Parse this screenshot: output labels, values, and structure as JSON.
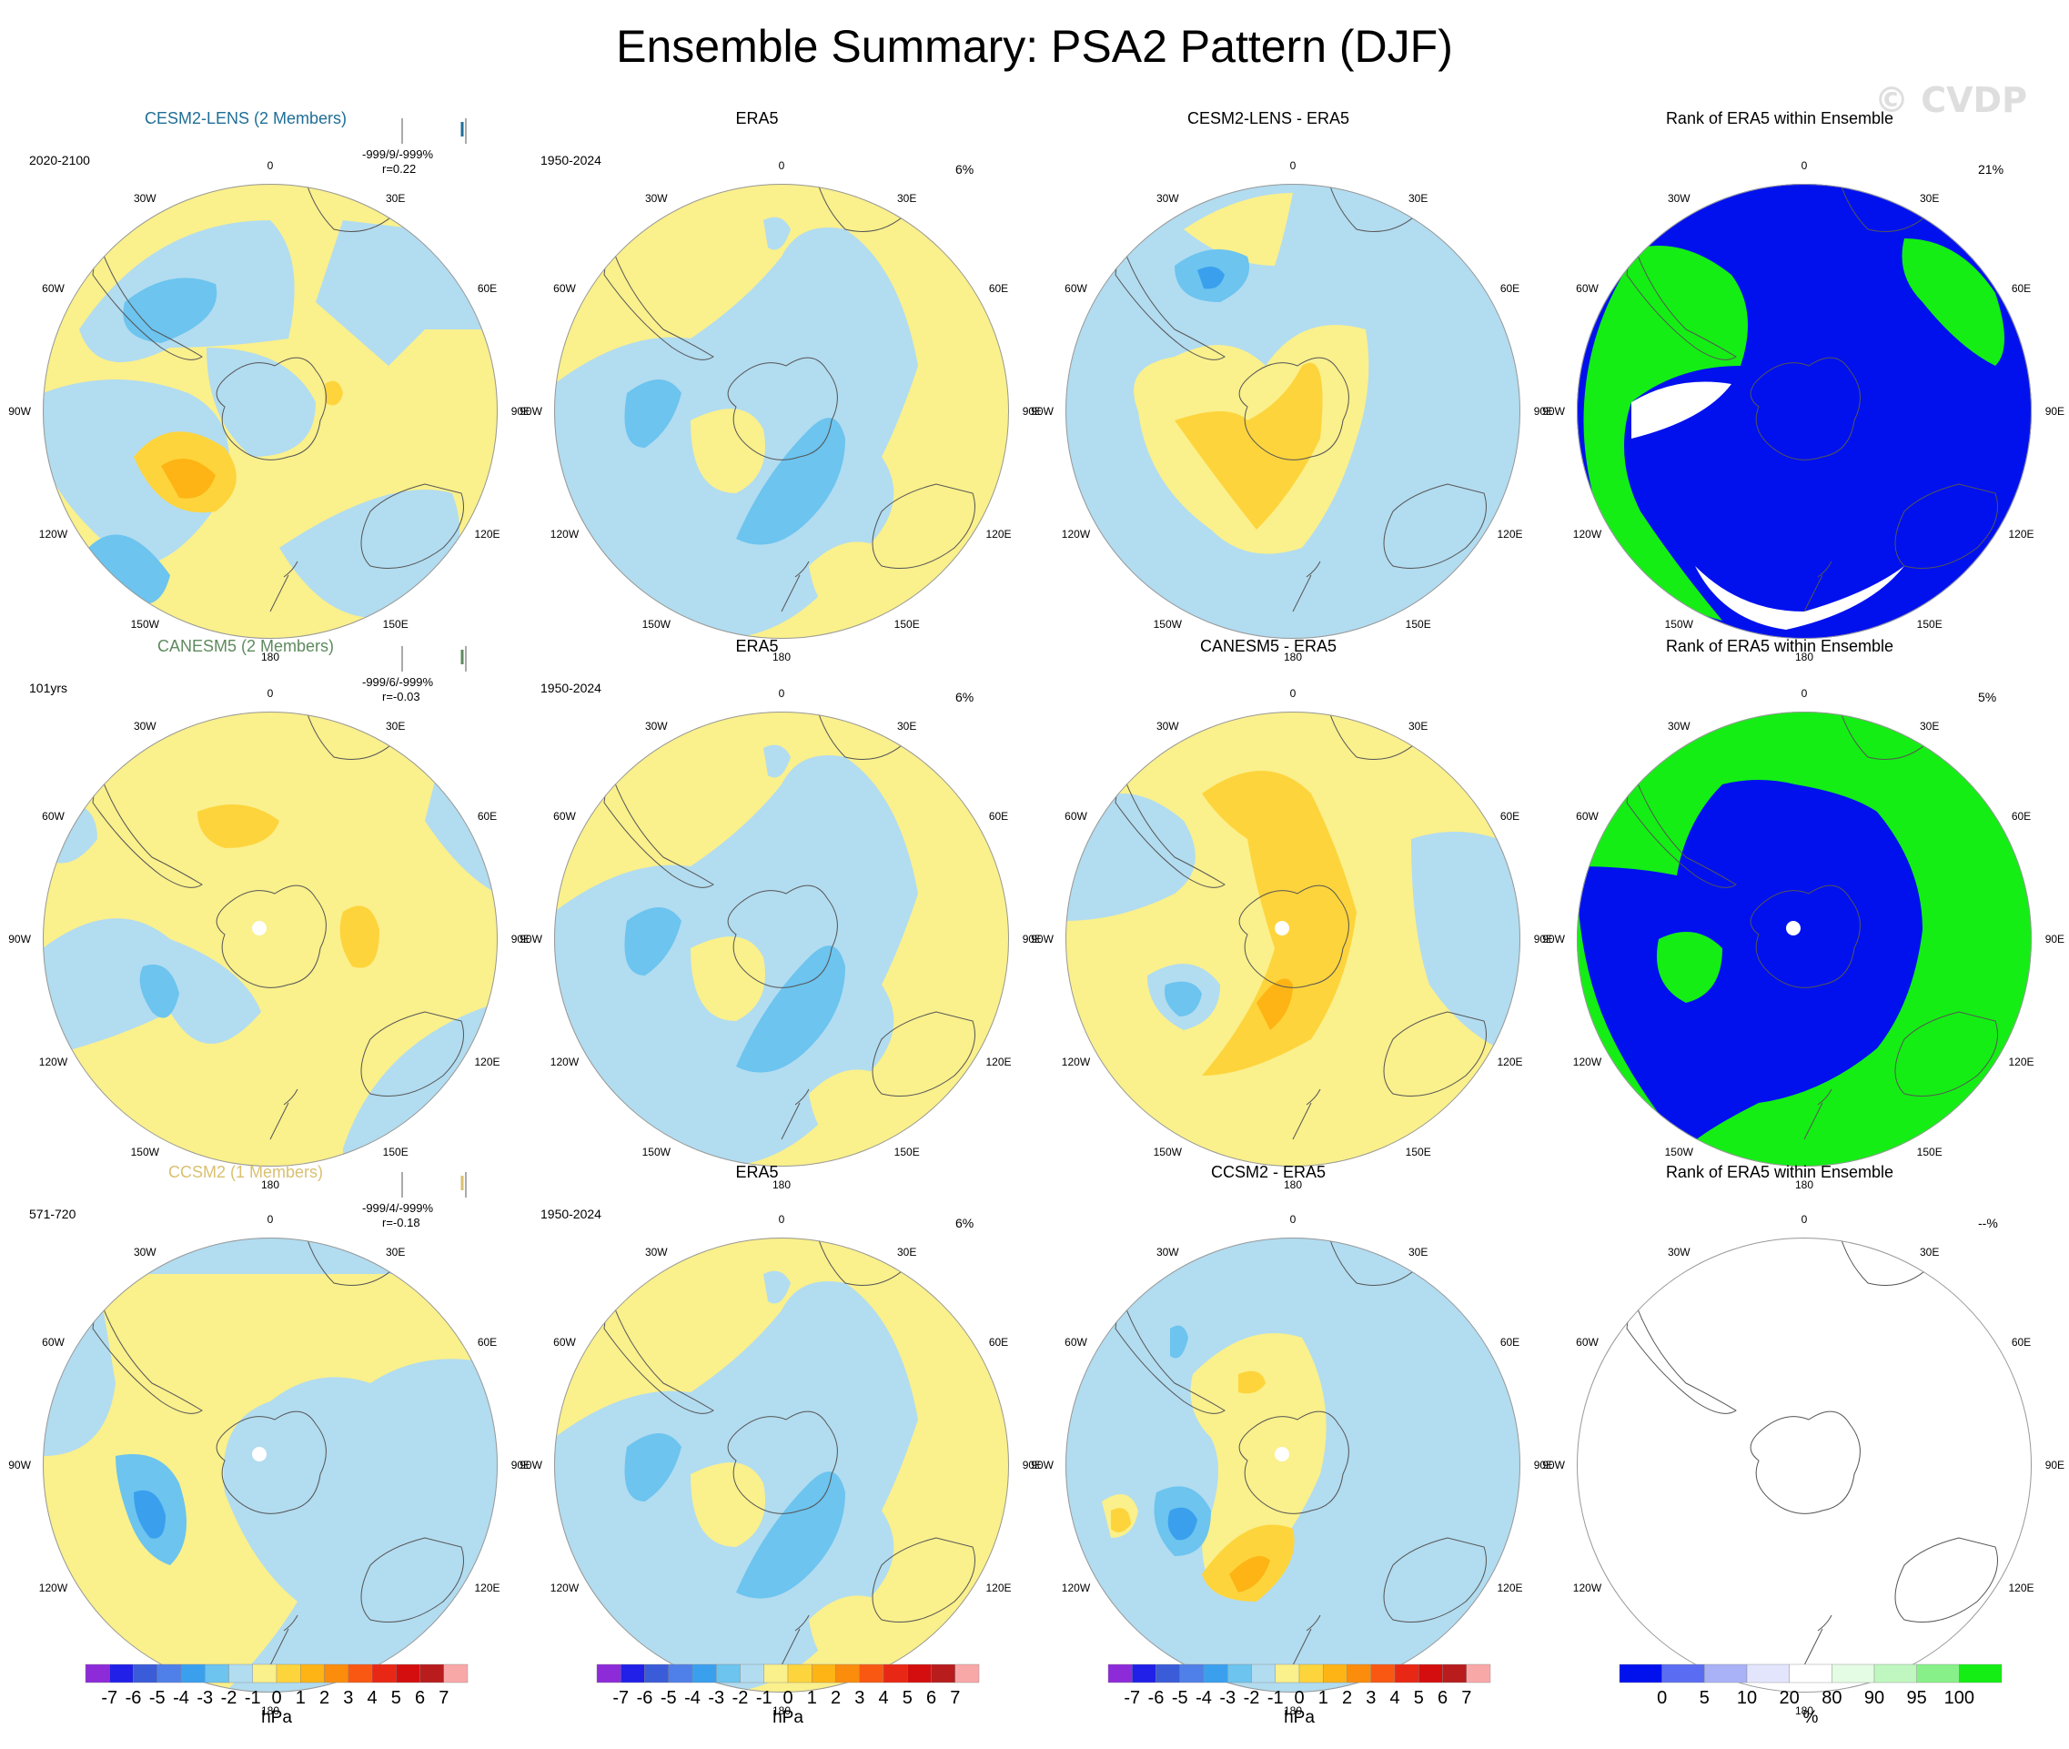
{
  "title": "Ensemble Summary: PSA2 Pattern (DJF)",
  "watermark": "© CVDP",
  "lon_labels": [
    "0",
    "30E",
    "60E",
    "90E",
    "120E",
    "150E",
    "180",
    "150W",
    "120W",
    "90W",
    "60W",
    "30W"
  ],
  "colors": {
    "diff_palette": [
      "#8e2bd8",
      "#2020e8",
      "#3a5cd8",
      "#4f7fe8",
      "#3aa0ee",
      "#6cc4ef",
      "#b2dcf0",
      "#faf08c",
      "#fed43c",
      "#fdb414",
      "#fb8c0c",
      "#f95812",
      "#e82814",
      "#d40e0e",
      "#b81c1c",
      "#f9a8a8"
    ],
    "rank_palette": [
      "#0011ee",
      "#5a6df2",
      "#a9b2f6",
      "#e2e5fc",
      "#ffffff",
      "#e4fbe4",
      "#c0f7c0",
      "#88f088",
      "#14ee14"
    ]
  },
  "colorbars": {
    "diff_labels": [
      "-7",
      "-6",
      "-5",
      "-4",
      "-3",
      "-2",
      "-1",
      "0",
      "1",
      "2",
      "3",
      "4",
      "5",
      "6",
      "7"
    ],
    "diff_unit": "hPa",
    "rank_labels": [
      "0",
      "5",
      "10",
      "20",
      "80",
      "90",
      "95",
      "100"
    ],
    "rank_unit": "%"
  },
  "rows": [
    {
      "model": {
        "title": "CESM2-LENS (2 Members)",
        "title_color": "#1f6e96",
        "period": "2020-2100",
        "stats": "-999/9/-999%",
        "pattern_corr": "r=0.22"
      },
      "era5": {
        "title": "ERA5",
        "period": "1950-2024",
        "pct": "6%"
      },
      "diff": {
        "title": "CESM2-LENS - ERA5"
      },
      "rank": {
        "title": "Rank of ERA5 within Ensemble",
        "pct": "21%"
      }
    },
    {
      "model": {
        "title": "CANESM5 (2 Members)",
        "title_color": "#5e8a5e",
        "period": "101yrs",
        "stats": "-999/6/-999%",
        "pattern_corr": "r=-0.03"
      },
      "era5": {
        "title": "ERA5",
        "period": "1950-2024",
        "pct": "6%"
      },
      "diff": {
        "title": "CANESM5 - ERA5"
      },
      "rank": {
        "title": "Rank of ERA5 within Ensemble",
        "pct": "5%"
      }
    },
    {
      "model": {
        "title": "CCSM2 (1 Members)",
        "title_color": "#d9c070",
        "period": "571-720",
        "stats": "-999/4/-999%",
        "pattern_corr": "r=-0.18"
      },
      "era5": {
        "title": "ERA5",
        "period": "1950-2024",
        "pct": "6%"
      },
      "diff": {
        "title": "CCSM2 - ERA5"
      },
      "rank": {
        "title": "Rank of ERA5 within Ensemble",
        "pct": "--%"
      }
    }
  ],
  "chart_data": {
    "type": "heatmap",
    "projection": "south polar stereographic",
    "rows": 3,
    "columns": [
      "model pattern",
      "ERA5",
      "difference",
      "rank of ERA5"
    ],
    "colorbar_diff": {
      "levels": [
        -7,
        -6,
        -5,
        -4,
        -3,
        -2,
        -1,
        0,
        1,
        2,
        3,
        4,
        5,
        6,
        7
      ],
      "unit": "hPa"
    },
    "colorbar_rank": {
      "levels": [
        0,
        5,
        10,
        20,
        80,
        90,
        95,
        100
      ],
      "unit": "%"
    }
  }
}
